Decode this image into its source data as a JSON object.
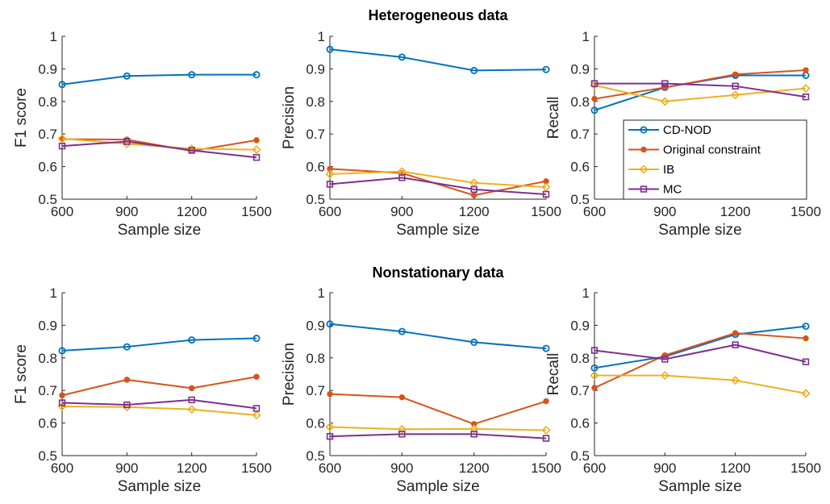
{
  "figure": {
    "row_titles": [
      "Heterogeneous data",
      "Nonstationary data"
    ]
  },
  "series_styles": [
    {
      "name": "CD-NOD",
      "color": "#0072BD",
      "marker": "circle"
    },
    {
      "name": "Original constraint",
      "color": "#D95319",
      "marker": "dot"
    },
    {
      "name": "IB",
      "color": "#EDB120",
      "marker": "diamond"
    },
    {
      "name": "MC",
      "color": "#7E2F8E",
      "marker": "square"
    }
  ],
  "legend": {
    "placement": "inside lower-right of top-right panel",
    "entries": [
      "CD-NOD",
      "Original constraint",
      "IB",
      "MC"
    ]
  },
  "chart_data": [
    {
      "type": "line",
      "row_title": "Heterogeneous data",
      "xlabel": "Sample size",
      "ylabel": "F1 score",
      "x": [
        600,
        900,
        1200,
        1500
      ],
      "xticks": [
        "600",
        "900",
        "1200",
        "1500"
      ],
      "ylim": [
        0.5,
        1
      ],
      "yticks": [
        "0.5",
        "0.6",
        "0.7",
        "0.8",
        "0.9",
        "1"
      ],
      "series": [
        {
          "name": "CD-NOD",
          "values": [
            0.852,
            0.878,
            0.882,
            0.882
          ]
        },
        {
          "name": "Original constraint",
          "values": [
            0.684,
            0.683,
            0.648,
            0.681
          ]
        },
        {
          "name": "IB",
          "values": [
            0.686,
            0.67,
            0.655,
            0.652
          ]
        },
        {
          "name": "MC",
          "values": [
            0.663,
            0.677,
            0.65,
            0.628
          ]
        }
      ]
    },
    {
      "type": "line",
      "row_title": "Heterogeneous data",
      "xlabel": "Sample size",
      "ylabel": "Precision",
      "x": [
        600,
        900,
        1200,
        1500
      ],
      "xticks": [
        "600",
        "900",
        "1200",
        "1500"
      ],
      "ylim": [
        0.5,
        1
      ],
      "yticks": [
        "0.5",
        "0.6",
        "0.7",
        "0.8",
        "0.9",
        "1"
      ],
      "series": [
        {
          "name": "CD-NOD",
          "values": [
            0.96,
            0.936,
            0.895,
            0.898
          ]
        },
        {
          "name": "Original constraint",
          "values": [
            0.593,
            0.58,
            0.512,
            0.555
          ]
        },
        {
          "name": "IB",
          "values": [
            0.577,
            0.585,
            0.55,
            0.537
          ]
        },
        {
          "name": "MC",
          "values": [
            0.546,
            0.566,
            0.53,
            0.515
          ]
        }
      ]
    },
    {
      "type": "line",
      "row_title": "Heterogeneous data",
      "xlabel": "Sample size",
      "ylabel": "Recall",
      "x": [
        600,
        900,
        1200,
        1500
      ],
      "xticks": [
        "600",
        "900",
        "1200",
        "1500"
      ],
      "ylim": [
        0.5,
        1
      ],
      "yticks": [
        "0.5",
        "0.6",
        "0.7",
        "0.8",
        "0.9",
        "1"
      ],
      "series": [
        {
          "name": "CD-NOD",
          "values": [
            0.773,
            0.843,
            0.88,
            0.88
          ]
        },
        {
          "name": "Original constraint",
          "values": [
            0.808,
            0.843,
            0.883,
            0.896
          ]
        },
        {
          "name": "IB",
          "values": [
            0.85,
            0.8,
            0.82,
            0.84
          ]
        },
        {
          "name": "MC",
          "values": [
            0.855,
            0.855,
            0.847,
            0.814
          ]
        }
      ]
    },
    {
      "type": "line",
      "row_title": "Nonstationary data",
      "xlabel": "Sample size",
      "ylabel": "F1 score",
      "x": [
        600,
        900,
        1200,
        1500
      ],
      "xticks": [
        "600",
        "900",
        "1200",
        "1500"
      ],
      "ylim": [
        0.5,
        1
      ],
      "yticks": [
        "0.5",
        "0.6",
        "0.7",
        "0.8",
        "0.9",
        "1"
      ],
      "series": [
        {
          "name": "CD-NOD",
          "values": [
            0.822,
            0.834,
            0.855,
            0.86
          ]
        },
        {
          "name": "Original constraint",
          "values": [
            0.685,
            0.733,
            0.707,
            0.742
          ]
        },
        {
          "name": "IB",
          "values": [
            0.651,
            0.649,
            0.642,
            0.624
          ]
        },
        {
          "name": "MC",
          "values": [
            0.662,
            0.656,
            0.671,
            0.645
          ]
        }
      ]
    },
    {
      "type": "line",
      "row_title": "Nonstationary data",
      "xlabel": "Sample size",
      "ylabel": "Precision",
      "x": [
        600,
        900,
        1200,
        1500
      ],
      "xticks": [
        "600",
        "900",
        "1200",
        "1500"
      ],
      "ylim": [
        0.5,
        1
      ],
      "yticks": [
        "0.5",
        "0.6",
        "0.7",
        "0.8",
        "0.9",
        "1"
      ],
      "series": [
        {
          "name": "CD-NOD",
          "values": [
            0.904,
            0.881,
            0.848,
            0.829
          ]
        },
        {
          "name": "Original constraint",
          "values": [
            0.689,
            0.679,
            0.597,
            0.667
          ]
        },
        {
          "name": "IB",
          "values": [
            0.588,
            0.581,
            0.582,
            0.578
          ]
        },
        {
          "name": "MC",
          "values": [
            0.559,
            0.566,
            0.566,
            0.553
          ]
        }
      ]
    },
    {
      "type": "line",
      "row_title": "Nonstationary data",
      "xlabel": "Sample size",
      "ylabel": "Recall",
      "x": [
        600,
        900,
        1200,
        1500
      ],
      "xticks": [
        "600",
        "900",
        "1200",
        "1500"
      ],
      "ylim": [
        0.5,
        1
      ],
      "yticks": [
        "0.5",
        "0.6",
        "0.7",
        "0.8",
        "0.9",
        "1"
      ],
      "series": [
        {
          "name": "CD-NOD",
          "values": [
            0.769,
            0.804,
            0.872,
            0.897
          ]
        },
        {
          "name": "Original constraint",
          "values": [
            0.708,
            0.808,
            0.876,
            0.86
          ]
        },
        {
          "name": "IB",
          "values": [
            0.746,
            0.746,
            0.731,
            0.691
          ]
        },
        {
          "name": "MC",
          "values": [
            0.823,
            0.796,
            0.84,
            0.788
          ]
        }
      ]
    }
  ]
}
